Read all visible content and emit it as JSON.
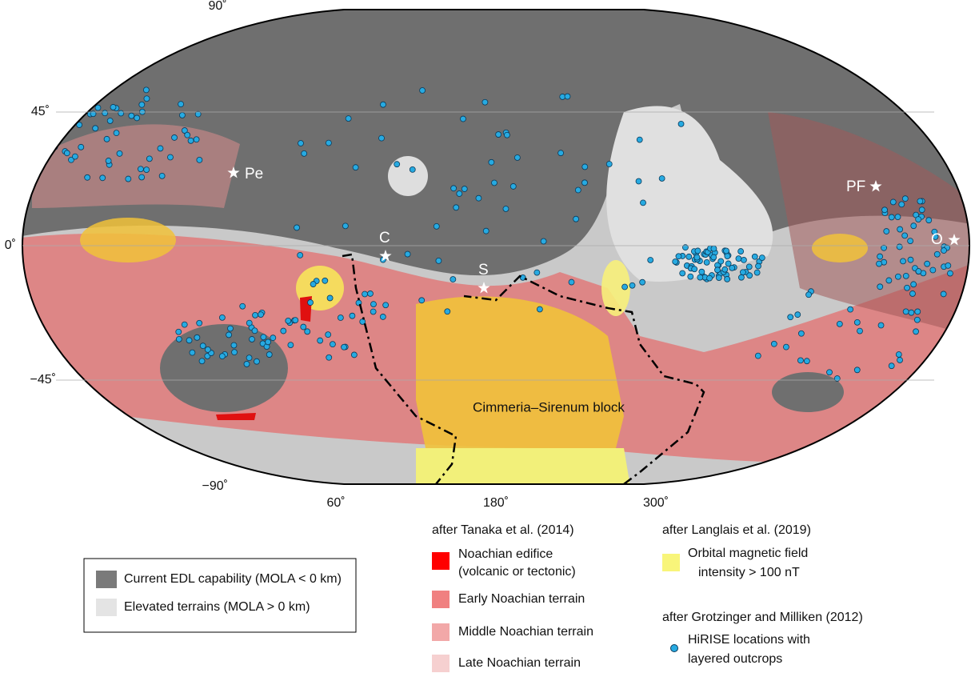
{
  "map": {
    "lat_labels": [
      "90˚",
      "45˚",
      "0˚",
      "−45˚",
      "−90˚"
    ],
    "lon_labels": [
      "60˚",
      "180˚",
      "300˚"
    ],
    "sites": [
      "Pe",
      "C",
      "S",
      "PF",
      "O"
    ],
    "region_label": "Cimmeria–Sirenum block"
  },
  "legend_edl": {
    "items": [
      "Current EDL capability (MOLA < 0 km)",
      "Elevated terrains (MOLA > 0 km)"
    ]
  },
  "legend_tanaka": {
    "title": "after Tanaka et al. (2014)",
    "items": [
      [
        "Noachian edifice",
        "(volcanic or tectonic)"
      ],
      [
        "Early Noachian terrain"
      ],
      [
        "Middle Noachian terrain"
      ],
      [
        "Late Noachian terrain"
      ]
    ]
  },
  "legend_langlais": {
    "title": "after Langlais et al. (2019)",
    "items": [
      [
        "Orbital magnetic field",
        "intensity > 100 nT"
      ]
    ]
  },
  "legend_grotzinger": {
    "title": "after Grotzinger and Milliken (2012)",
    "items": [
      [
        "HiRISE locations with",
        "layered outcrops"
      ]
    ]
  }
}
